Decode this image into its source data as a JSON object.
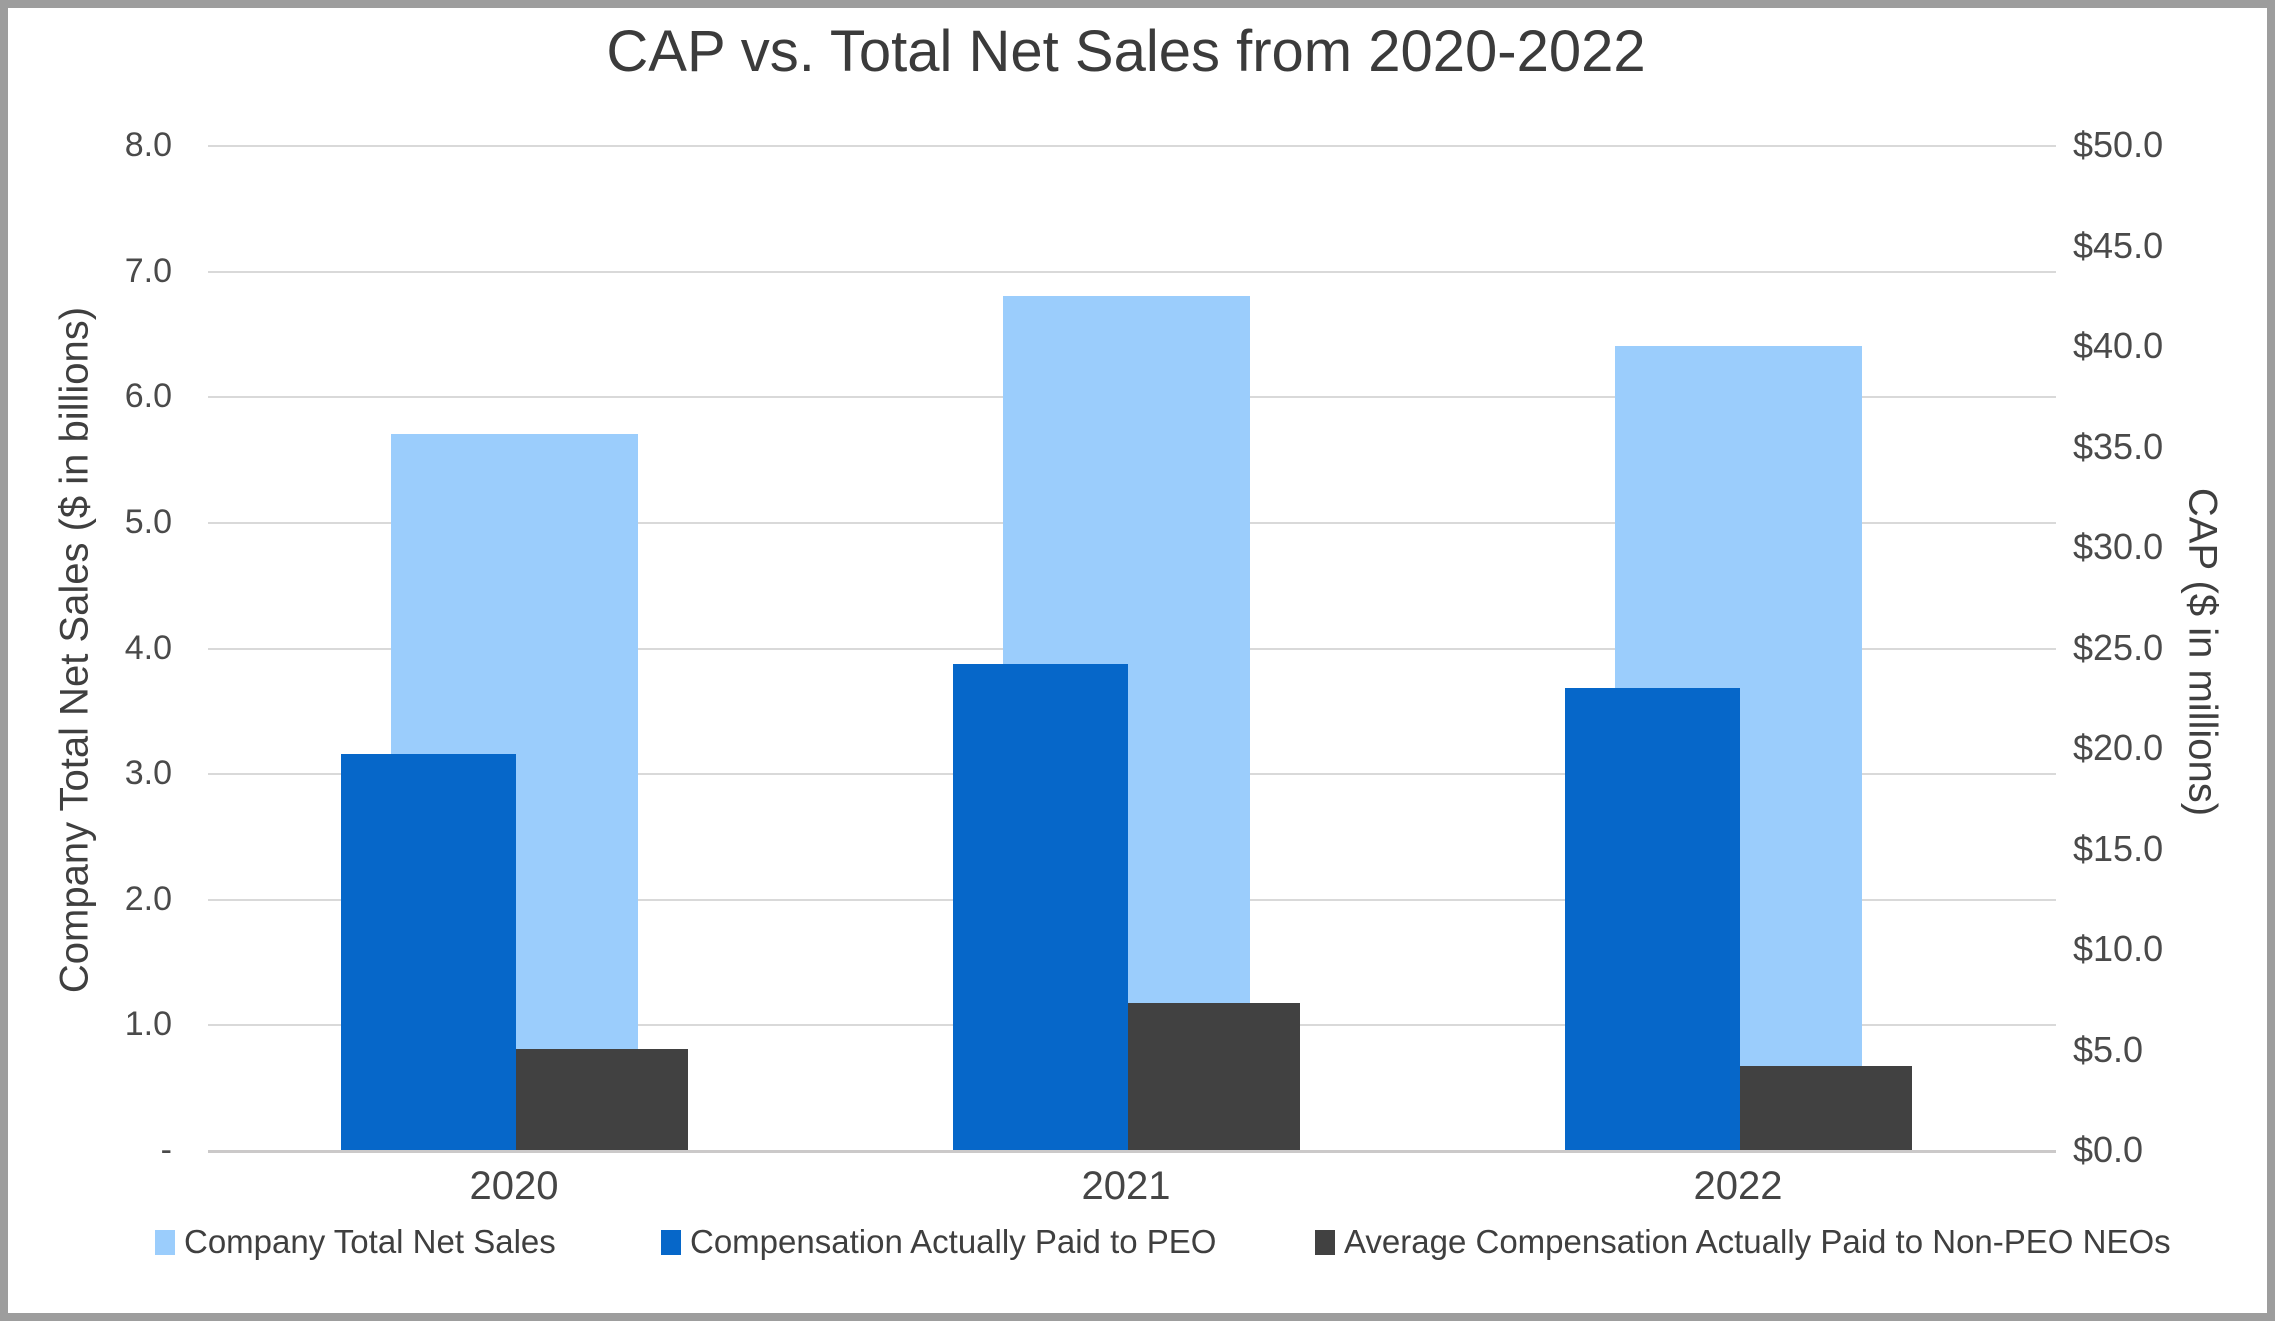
{
  "chart_data": {
    "type": "bar",
    "title": "CAP vs. Total Net Sales from 2020-2022",
    "categories": [
      "2020",
      "2021",
      "2022"
    ],
    "series": [
      {
        "name": "Company Total Net Sales",
        "axis": "left",
        "color": "#9bcdfc",
        "values": [
          5.7,
          6.8,
          6.4
        ]
      },
      {
        "name": "Compensation Actually Paid to PEO",
        "axis": "right",
        "color": "#0667c9",
        "values": [
          19.7,
          24.2,
          23.0
        ]
      },
      {
        "name": "Average Compensation Actually Paid to Non-PEO NEOs",
        "axis": "right",
        "color": "#414141",
        "values": [
          5.0,
          7.3,
          4.2
        ]
      }
    ],
    "left_axis": {
      "title": "Company Total Net Sales ($ in billions)",
      "min": 0,
      "max": 8,
      "tick_labels": [
        "8.0",
        "7.0",
        "6.0",
        "5.0",
        "4.0",
        "3.0",
        "2.0",
        "1.0",
        "-"
      ]
    },
    "right_axis": {
      "title": "CAP ($ in millions)",
      "min": 0,
      "max": 50,
      "tick_labels": [
        "$50.0",
        "$45.0",
        "$40.0",
        "$35.0",
        "$30.0",
        "$25.0",
        "$20.0",
        "$15.0",
        "$10.0",
        "$5.0",
        "$0.0"
      ]
    },
    "legend": {
      "position": "bottom",
      "entries": [
        "Company Total Net Sales",
        "Compensation Actually Paid to PEO",
        "Average Compensation Actually Paid to Non-PEO NEOs"
      ]
    },
    "grid": true,
    "gridline_color": "#d9d9d9"
  }
}
